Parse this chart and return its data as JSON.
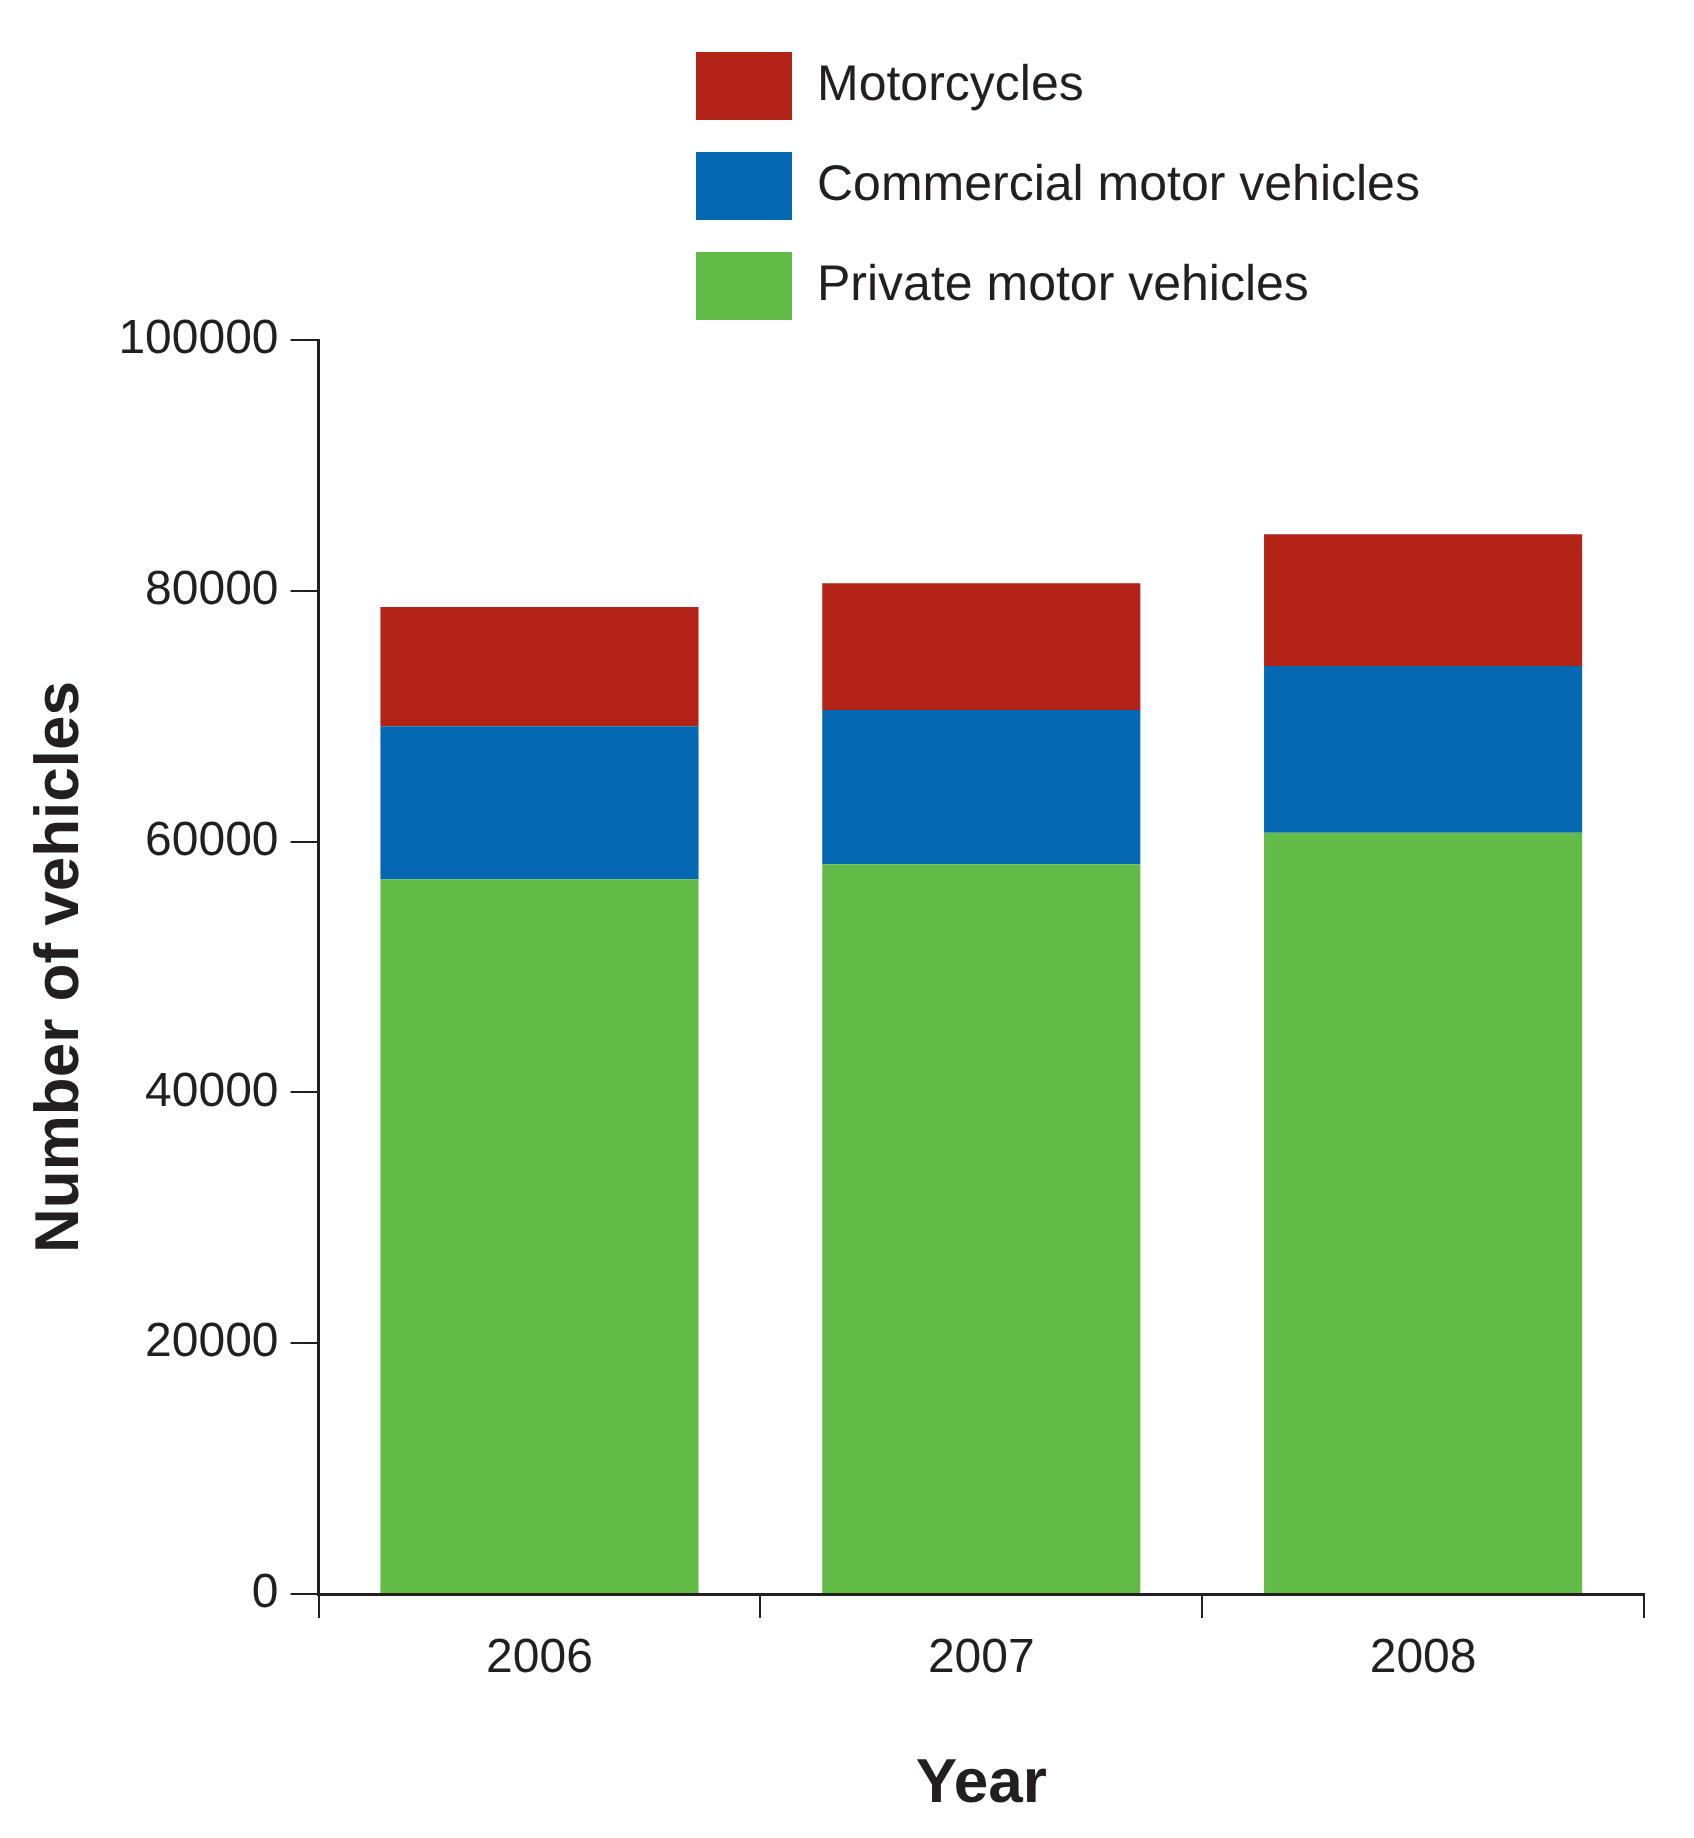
{
  "chart_data": {
    "type": "bar",
    "stacked": true,
    "xlabel": "Year",
    "ylabel": "Number of vehicles",
    "categories": [
      "2006",
      "2007",
      "2008"
    ],
    "series": [
      {
        "name": "Private motor vehicles",
        "color": "#62bb47",
        "values": [
          57000,
          58200,
          60700
        ]
      },
      {
        "name": "Commercial motor vehicles",
        "color": "#0568b3",
        "values": [
          12200,
          12300,
          13300
        ]
      },
      {
        "name": "Motorcycles",
        "color": "#b32317",
        "values": [
          9500,
          10100,
          10500
        ]
      }
    ],
    "ylim": [
      0,
      100000
    ],
    "yticks": [
      0,
      20000,
      40000,
      60000,
      80000,
      100000
    ],
    "grid": false,
    "legend": "top"
  }
}
